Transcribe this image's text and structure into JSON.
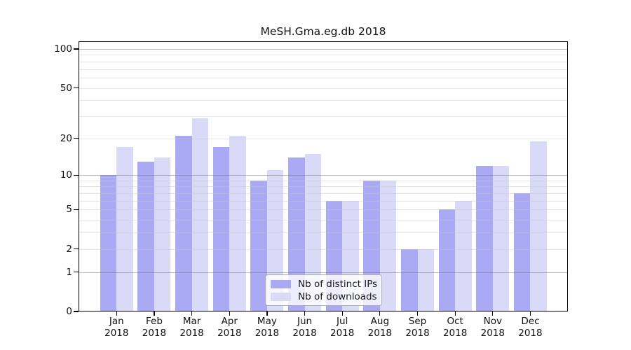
{
  "chart_data": {
    "type": "bar",
    "title": "MeSH.Gma.eg.db 2018",
    "year_label": "2018",
    "categories": [
      "Jan",
      "Feb",
      "Mar",
      "Apr",
      "May",
      "Jun",
      "Jul",
      "Aug",
      "Sep",
      "Oct",
      "Nov",
      "Dec"
    ],
    "series": [
      {
        "name": "Nb of distinct IPs",
        "color": "#a9a9f4",
        "values": [
          10,
          13,
          21,
          17,
          9,
          14,
          6,
          9,
          2,
          5,
          12,
          7
        ]
      },
      {
        "name": "Nb of downloads",
        "color": "#d9d9f8",
        "values": [
          17,
          14,
          29,
          21,
          11,
          15,
          6,
          9,
          2,
          6,
          12,
          19
        ]
      }
    ],
    "yscale": "log1p",
    "ylim": [
      0,
      115
    ],
    "yticks": [
      0,
      1,
      2,
      5,
      10,
      20,
      50,
      100
    ],
    "grid_major": [
      1,
      10,
      100
    ],
    "grid_minor": [
      2,
      3,
      4,
      5,
      6,
      7,
      8,
      9,
      20,
      30,
      40,
      50,
      60,
      70,
      80,
      90
    ],
    "grid_major_color": "#bdbdbd",
    "grid_minor_color": "#e6e6e6",
    "axis_color": "#000000",
    "background_color": "#ffffff",
    "legend": {
      "position": "bottom-center",
      "entries": [
        "Nb of distinct IPs",
        "Nb of downloads"
      ]
    }
  }
}
